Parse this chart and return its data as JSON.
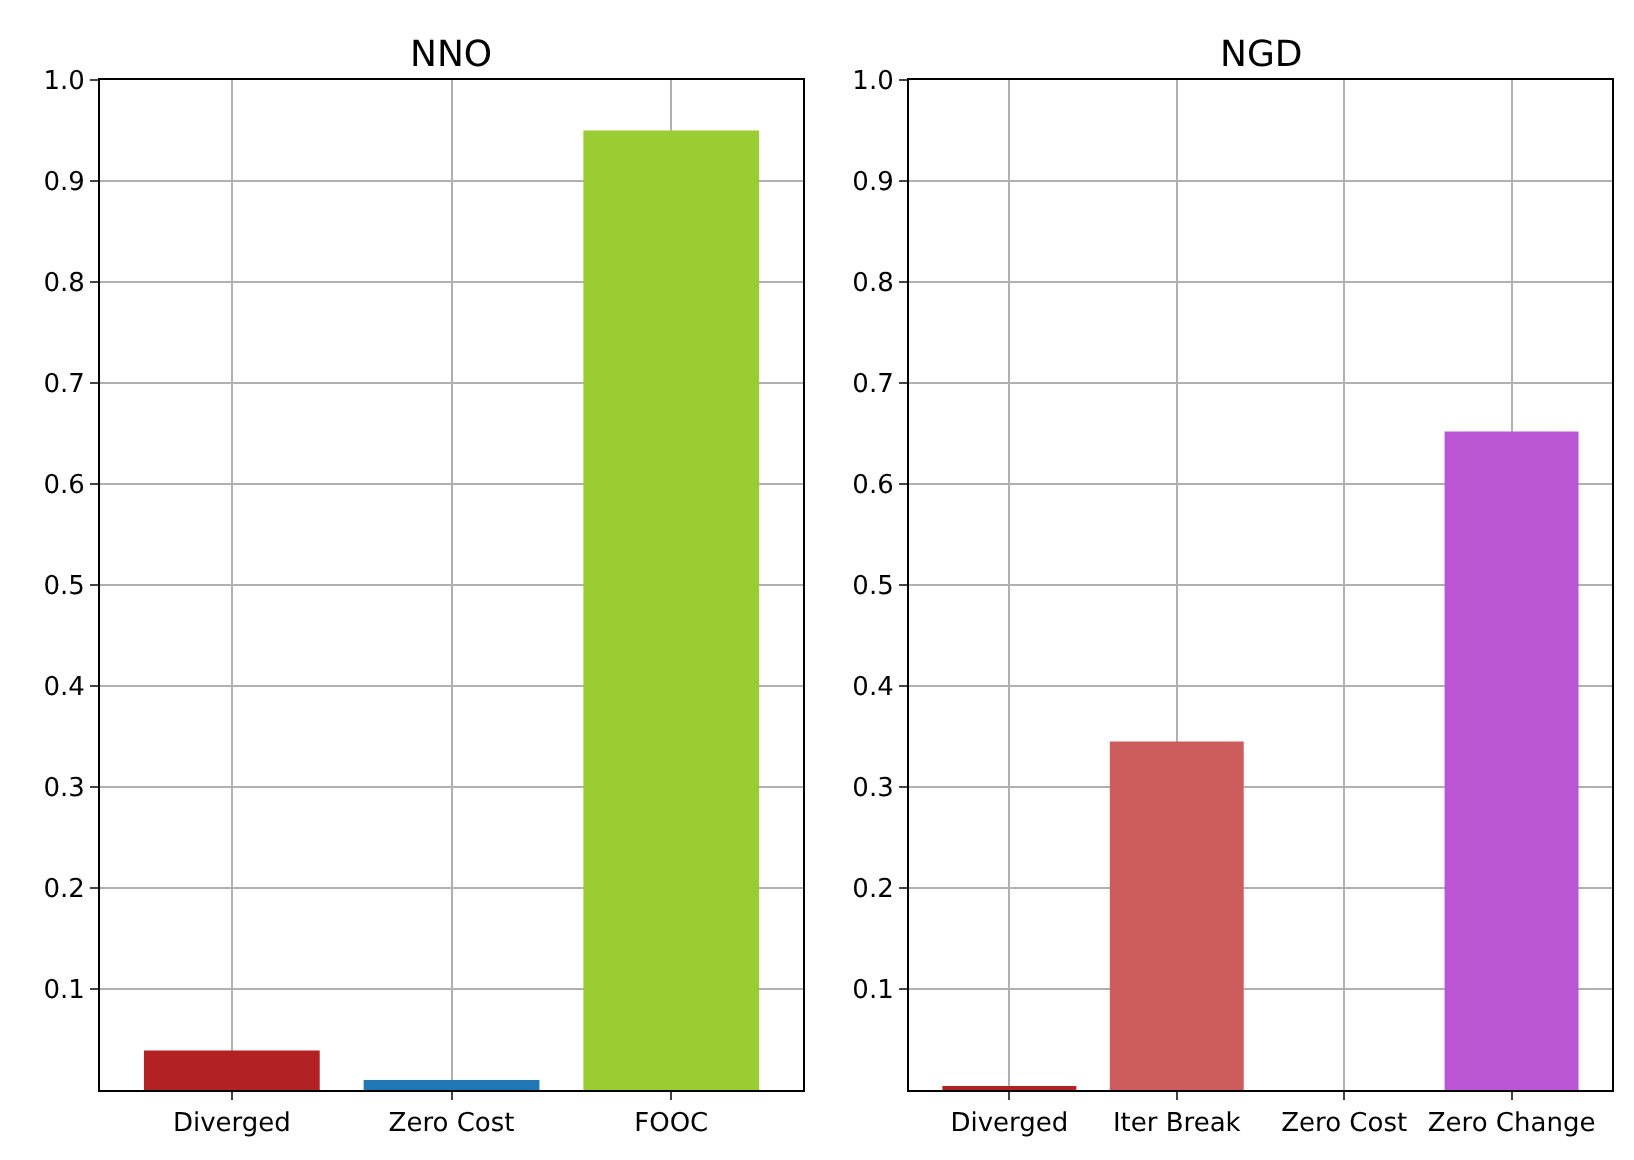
{
  "chart_data": [
    {
      "type": "bar",
      "title": "NNO",
      "categories": [
        "Diverged",
        "Zero Cost",
        "FOOC"
      ],
      "values": [
        0.039,
        0.01,
        0.95
      ],
      "colors": [
        "#b22222",
        "#1f77b4",
        "#9acd32"
      ],
      "ylim": [
        0,
        1.0
      ],
      "yticks": [
        0.1,
        0.2,
        0.3,
        0.4,
        0.5,
        0.6,
        0.7,
        0.8,
        0.9,
        {
          "value": 1,
          "label": "1.0"
        }
      ],
      "grid": true
    },
    {
      "type": "bar",
      "title": "NGD",
      "categories": [
        "Diverged",
        "Iter Break",
        "Zero Cost",
        "Zero Change"
      ],
      "values": [
        0.004,
        0.345,
        0,
        0.652
      ],
      "colors": [
        "#b22222",
        "#cd5c5c",
        "#1f77b4",
        "#ba55d3"
      ],
      "ylim": [
        0,
        1.0
      ],
      "yticks": [
        0.1,
        0.2,
        0.3,
        0.4,
        0.5,
        0.6,
        0.7,
        0.8,
        0.9,
        {
          "value": 1,
          "label": "1.0"
        }
      ],
      "grid": true
    }
  ]
}
